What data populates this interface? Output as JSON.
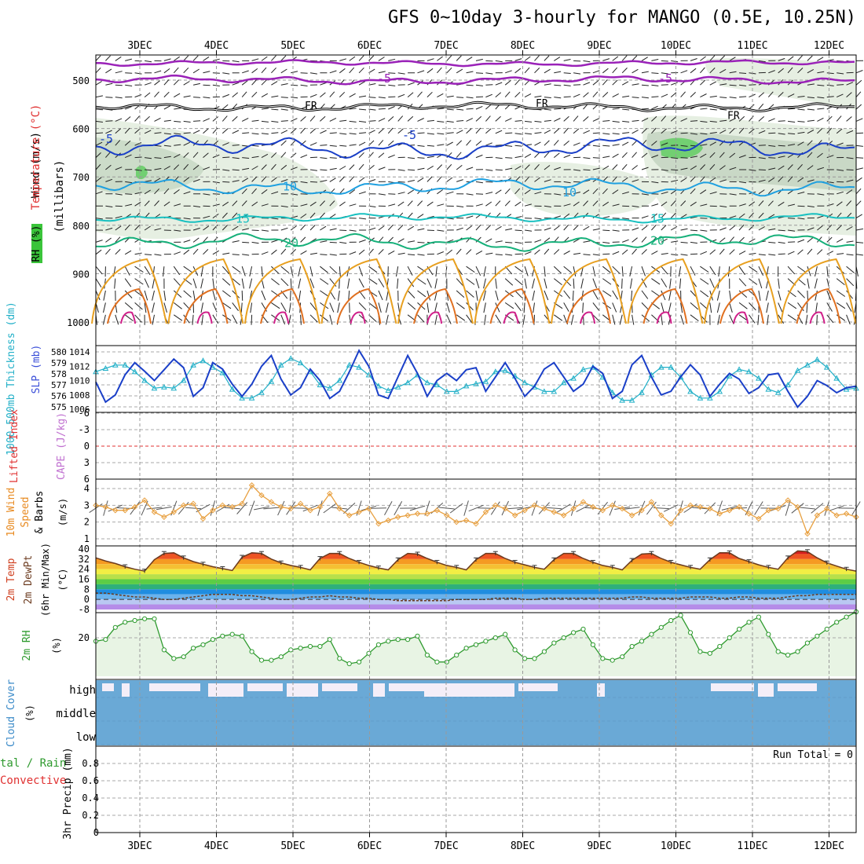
{
  "title": "GFS 0~10day 3-hourly for MANGO (0.5E, 10.25N)",
  "dates": [
    "3DEC",
    "4DEC",
    "5DEC",
    "6DEC",
    "7DEC",
    "8DEC",
    "9DEC",
    "10DEC",
    "11DEC",
    "12DEC"
  ],
  "colors": {
    "temp_fill_hot": "#d81e1e",
    "temp_line": "#6b3a1e",
    "rh_fill": "#e8f4e4",
    "rh_line": "#2e9a2e",
    "cloud_fill": "#6aa9d6",
    "cloud_clear": "#f4eef8",
    "slp_line": "#1a3fc8",
    "thick_line": "#22b0c8",
    "wind10_line": "#e8a040"
  },
  "panels": {
    "upper": {
      "ylabel_wind": "Wind (m/s)",
      "ylabel_temp": "Temperature (°C)",
      "ylabel_rh": "RH (%)",
      "ylabel_mb": "(millibars)",
      "y_ticks": [
        "500",
        "600",
        "700",
        "800",
        "900",
        "1000"
      ],
      "contour_labels": {
        "minus5_upper": "-5",
        "fr": "FR",
        "minus5": "-5",
        "ten": "10",
        "fifteen": "15",
        "twenty": "20"
      }
    },
    "slp": {
      "ylabel_thick": "1000-500mb Thickness (dm)",
      "ylabel_slp": "SLP (mb)",
      "left_ticks": [
        "580",
        "579",
        "578",
        "577",
        "576",
        "575"
      ],
      "right_ticks": [
        "1014",
        "1012",
        "1010",
        "1008",
        "1006"
      ]
    },
    "cape": {
      "ylabel_li": "Lifted Index",
      "ylabel_cape": "CAPE (J/kg)",
      "ticks": [
        "-6",
        "-3",
        "0",
        "3",
        "6"
      ]
    },
    "wind10": {
      "ylabel1": "10m Wind",
      "ylabel2": "Speed",
      "ylabel3": "& Barbs",
      "ylabel_unit": "(m/s)",
      "ticks": [
        "4",
        "3",
        "2",
        "1"
      ]
    },
    "temp2m": {
      "ylabel1": "2m Temp",
      "ylabel2": "2m DewPt",
      "ylabel3": "(6hr Min/Max)",
      "ylabel_unit": "(°C)",
      "ticks": [
        "40",
        "32",
        "24",
        "16",
        "8",
        "0",
        "-8"
      ]
    },
    "rh2m": {
      "ylabel": "2m RH",
      "ylabel_unit": "(%)",
      "ticks": [
        "20"
      ]
    },
    "cloud": {
      "ylabel": "Cloud Cover",
      "ylabel_unit": "(%)",
      "levels": [
        "high",
        "middle",
        "low"
      ]
    },
    "precip": {
      "ylabel_total": "tal / Rain",
      "ylabel_conv": "Convective",
      "ylabel_unit": "3hr Precip (mm)",
      "run_total": "Run Total = 0",
      "ticks": [
        "0.8",
        "0.6",
        "0.4",
        "0.2",
        "0"
      ]
    }
  },
  "chart_data": [
    {
      "type": "line",
      "title": "1000-500mb Thickness (dm)",
      "ylim": [
        575,
        580
      ],
      "series": [
        {
          "name": "1000-500mb Thickness (dm)",
          "values": [
            578.2,
            578.5,
            578.8,
            578.8,
            578.2,
            577.4,
            576.7,
            576.8,
            576.7,
            577.4,
            578.8,
            579.2,
            578.6,
            578.1,
            576.6,
            575.8,
            575.8,
            576.3,
            577.3,
            578.8,
            579.4,
            579.0,
            578.2,
            577.0,
            576.7,
            577.4,
            578.8,
            578.6,
            577.9,
            576.9,
            576.5,
            576.8,
            577.2,
            577.9,
            577.2,
            577.0,
            576.4,
            576.4,
            576.9,
            577.1,
            577.3,
            578.2,
            578.3,
            577.8,
            577.2,
            576.8,
            576.4,
            576.4,
            577.2,
            577.6,
            578.4,
            578.6,
            577.7,
            576.3,
            575.6,
            575.6,
            576.3,
            577.9,
            578.6,
            578.6,
            577.7,
            576.4,
            575.8,
            575.8,
            576.4,
            577.8,
            578.4,
            578.2,
            577.6,
            576.6,
            576.3,
            577.0,
            578.3,
            578.8,
            579.3,
            578.6,
            577.6,
            576.6,
            576.7
          ]
        }
      ]
    },
    {
      "type": "line",
      "title": "SLP (mb)",
      "ylim": [
        1006,
        1014
      ],
      "series": [
        {
          "name": "SLP (mb)",
          "values": [
            1009.8,
            1007.0,
            1008.0,
            1010.8,
            1012.5,
            1011.3,
            1010.0,
            1011.5,
            1013.0,
            1011.8,
            1007.8,
            1009.0,
            1012.5,
            1011.6,
            1009.5,
            1007.8,
            1009.5,
            1012.0,
            1013.5,
            1010.2,
            1008.0,
            1009.0,
            1011.6,
            1010.0,
            1007.5,
            1008.5,
            1011.2,
            1014.2,
            1012.0,
            1008.0,
            1007.5,
            1010.5,
            1013.5,
            1011.0,
            1007.8,
            1010.0,
            1011.0,
            1010.0,
            1011.5,
            1011.8,
            1008.5,
            1010.5,
            1012.5,
            1010.3,
            1007.8,
            1009.2,
            1011.6,
            1012.5,
            1010.5,
            1008.5,
            1009.5,
            1012.0,
            1011.0,
            1007.5,
            1008.5,
            1012.2,
            1013.5,
            1010.5,
            1008.0,
            1008.5,
            1010.5,
            1012.2,
            1010.8,
            1007.8,
            1009.5,
            1011.0,
            1010.2,
            1008.2,
            1009.0,
            1010.8,
            1011.0,
            1008.5,
            1006.3,
            1007.8,
            1010.0,
            1009.3,
            1008.3,
            1009.0,
            1009.2
          ]
        }
      ]
    },
    {
      "type": "line",
      "title": "10m Wind Speed (m/s)",
      "ylim": [
        1,
        4
      ],
      "series": [
        {
          "name": "10m Wind Speed",
          "values": [
            3.0,
            2.9,
            2.7,
            2.7,
            2.9,
            3.3,
            2.6,
            2.3,
            2.6,
            3.0,
            3.1,
            2.2,
            2.7,
            3.0,
            2.9,
            3.1,
            4.2,
            3.6,
            3.2,
            2.9,
            2.8,
            3.1,
            2.7,
            2.9,
            3.7,
            2.8,
            2.4,
            2.6,
            2.8,
            1.9,
            2.1,
            2.3,
            2.4,
            2.5,
            2.5,
            2.7,
            2.4,
            2.0,
            2.1,
            1.9,
            2.6,
            3.0,
            2.8,
            2.4,
            2.7,
            3.0,
            2.8,
            2.6,
            2.4,
            2.8,
            3.2,
            2.9,
            2.7,
            3.0,
            2.8,
            2.4,
            2.7,
            3.2,
            2.4,
            1.9,
            2.7,
            3.0,
            2.9,
            2.8,
            2.5,
            2.7,
            2.9,
            2.5,
            2.2,
            2.7,
            2.8,
            3.3,
            2.9,
            1.3,
            2.4,
            2.8,
            2.4,
            2.5,
            2.3
          ]
        }
      ]
    },
    {
      "type": "area",
      "title": "2m Temp (°C)",
      "ylim": [
        -8,
        40
      ],
      "series": [
        {
          "name": "2m Temp",
          "values": [
            33.0,
            30.5,
            28.5,
            26.0,
            24.0,
            22.5,
            31.5,
            36.5,
            37.0,
            33.0,
            30.0,
            28.0,
            26.0,
            24.5,
            23.0,
            33.5,
            37.0,
            36.5,
            32.0,
            29.0,
            27.0,
            25.5,
            23.5,
            32.5,
            36.5,
            36.5,
            32.5,
            29.5,
            27.0,
            25.0,
            23.5,
            31.5,
            36.5,
            36.0,
            32.5,
            29.5,
            27.0,
            25.5,
            23.5,
            31.5,
            36.5,
            36.5,
            32.5,
            29.5,
            27.5,
            25.5,
            24.0,
            31.5,
            36.5,
            36.5,
            32.5,
            29.5,
            27.0,
            25.5,
            23.5,
            31.0,
            36.0,
            36.5,
            32.5,
            29.5,
            27.5,
            25.5,
            24.0,
            31.5,
            37.0,
            37.0,
            32.5,
            30.0,
            27.5,
            25.5,
            24.0,
            33.0,
            38.5,
            38.0,
            33.0,
            29.0,
            26.5,
            24.0,
            22.5
          ]
        },
        {
          "name": "2m DewPt",
          "values": [
            5,
            5,
            4,
            3,
            2,
            2,
            1,
            0,
            0,
            1,
            2,
            3,
            4,
            4,
            4,
            3,
            3,
            2,
            1,
            0,
            0,
            1,
            2,
            2,
            3,
            2,
            2,
            1,
            1,
            0,
            0,
            -1,
            -1,
            -1,
            -1,
            -1,
            -1,
            0,
            0,
            0,
            0,
            1,
            1,
            1,
            0,
            0,
            1,
            1,
            1,
            1,
            1,
            1,
            1,
            1,
            1,
            2,
            2,
            1,
            1,
            1,
            1,
            2,
            2,
            2,
            1,
            1,
            2,
            2,
            1,
            1,
            1,
            2,
            3,
            3,
            4,
            4,
            4,
            4,
            4
          ]
        }
      ]
    },
    {
      "type": "area",
      "title": "2m RH (%)",
      "series": [
        {
          "name": "2m RH",
          "values": [
            18,
            19,
            26,
            29,
            30,
            31,
            31,
            13,
            8,
            9,
            14,
            16,
            19,
            21,
            22,
            21,
            12,
            7,
            7,
            9,
            13,
            14,
            15,
            15,
            19,
            8,
            5,
            6,
            11,
            16,
            18,
            19,
            19,
            21,
            10,
            6,
            6,
            10,
            14,
            16,
            18,
            20,
            22,
            13,
            8,
            8,
            12,
            17,
            20,
            23,
            25,
            16,
            8,
            7,
            9,
            15,
            18,
            22,
            26,
            30,
            33,
            23,
            12,
            11,
            15,
            20,
            25,
            29,
            32,
            22,
            12,
            10,
            12,
            17,
            21,
            25,
            29,
            32,
            35
          ]
        }
      ]
    },
    {
      "type": "bar",
      "title": "Cloud Cover (%)",
      "categories": [
        "high",
        "middle",
        "low"
      ]
    },
    {
      "type": "bar",
      "title": "3hr Precip (mm)",
      "ylim": [
        0,
        0.9
      ],
      "values": [
        0
      ]
    }
  ]
}
